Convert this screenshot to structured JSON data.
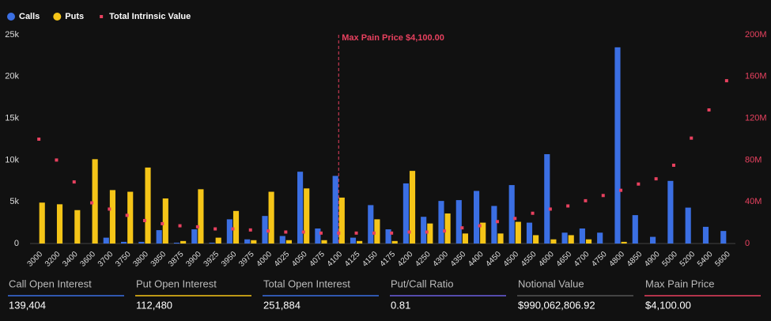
{
  "chart_data": {
    "type": "bar",
    "categories": [
      "3000",
      "3200",
      "3400",
      "3600",
      "3700",
      "3750",
      "3800",
      "3850",
      "3875",
      "3900",
      "3925",
      "3950",
      "3975",
      "4000",
      "4025",
      "4050",
      "4075",
      "4100",
      "4125",
      "4150",
      "4175",
      "4200",
      "4250",
      "4300",
      "4350",
      "4400",
      "4450",
      "4500",
      "4550",
      "4600",
      "4650",
      "4700",
      "4750",
      "4800",
      "4850",
      "4900",
      "5000",
      "5200",
      "5400",
      "5600"
    ],
    "series": [
      {
        "name": "Calls",
        "color": "#3b6fe3",
        "values": [
          0,
          0,
          0,
          0,
          700,
          200,
          200,
          1600,
          100,
          1700,
          100,
          2900,
          500,
          3300,
          900,
          8600,
          1800,
          8100,
          700,
          4600,
          1700,
          7200,
          3200,
          5100,
          5200,
          6300,
          4500,
          7000,
          2500,
          10700,
          1300,
          1800,
          1300,
          23500,
          3400,
          800,
          7500,
          4300,
          2000,
          1500
        ]
      },
      {
        "name": "Puts",
        "color": "#f5c518",
        "values": [
          4900,
          4700,
          4000,
          10100,
          6400,
          6200,
          9100,
          5400,
          300,
          6500,
          700,
          3900,
          400,
          6200,
          400,
          6600,
          400,
          5500,
          300,
          2900,
          300,
          8700,
          2400,
          3600,
          1200,
          2500,
          1200,
          2600,
          1000,
          500,
          1000,
          500,
          0,
          200,
          0,
          0,
          0,
          0,
          0,
          0
        ]
      },
      {
        "name": "Total Intrinsic Value",
        "type": "scatter",
        "axis": "y2",
        "color": "#e8415f",
        "values": [
          100000000,
          80000000,
          59000000,
          39000000,
          33000000,
          27000000,
          22000000,
          19000000,
          17000000,
          16000000,
          14000000,
          14000000,
          13000000,
          12000000,
          11000000,
          11000000,
          10000000,
          10000000,
          10000000,
          10000000,
          10000000,
          11000000,
          11000000,
          12000000,
          15000000,
          17000000,
          21000000,
          24000000,
          29000000,
          33000000,
          36000000,
          41000000,
          46000000,
          51000000,
          57000000,
          62000000,
          75000000,
          101000000,
          128000000,
          156000000
        ]
      }
    ],
    "ylim": [
      0,
      25000
    ],
    "yticks": [
      0,
      {
        "value": 5000,
        "label": "5k"
      },
      {
        "value": 10000,
        "label": "10k"
      },
      {
        "value": 15000,
        "label": "15k"
      },
      {
        "value": 20000,
        "label": "20k"
      },
      {
        "value": 25000,
        "label": "25k"
      }
    ],
    "y2lim": [
      0,
      200000000
    ],
    "y2ticks": [
      0,
      {
        "value": 40000000,
        "label": "40M"
      },
      {
        "value": 80000000,
        "label": "80M"
      },
      {
        "value": 120000000,
        "label": "120M"
      },
      {
        "value": 160000000,
        "label": "160M"
      },
      {
        "value": 200000000,
        "label": "200M"
      }
    ],
    "annotation": {
      "text": "Max Pain Price $4,100.00",
      "x": "4100",
      "color": "#e8415f"
    }
  },
  "stats": [
    {
      "label": "Call Open Interest",
      "value": "139,404",
      "color": "#3b6fe3"
    },
    {
      "label": "Put Open Interest",
      "value": "112,480",
      "color": "#f5c518"
    },
    {
      "label": "Total Open Interest",
      "value": "251,884",
      "color": "#3b6fe3"
    },
    {
      "label": "Put/Call Ratio",
      "value": "0.81",
      "color": "#6a5fe0"
    },
    {
      "label": "Notional Value",
      "value": "$990,062,806.92",
      "color": "#555555"
    },
    {
      "label": "Max Pain Price",
      "value": "$4,100.00",
      "color": "#e8415f"
    }
  ]
}
